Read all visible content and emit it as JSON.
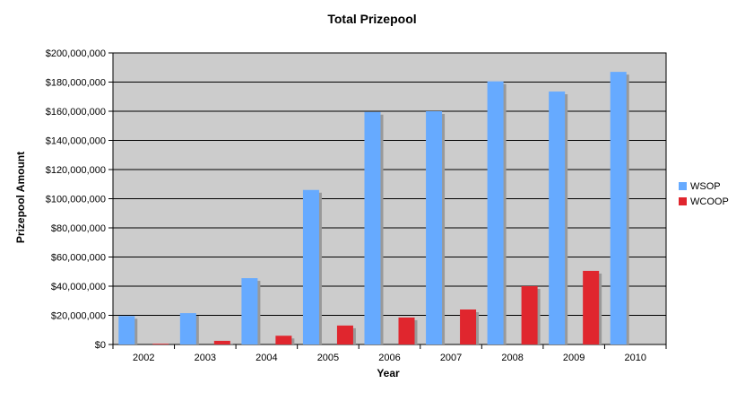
{
  "chart_data": {
    "type": "bar",
    "title": "Total Prizepool",
    "xlabel": "Year",
    "ylabel": "Prizepool Amount",
    "categories": [
      "2002",
      "2003",
      "2004",
      "2005",
      "2006",
      "2007",
      "2008",
      "2009",
      "2010"
    ],
    "series": [
      {
        "name": "WSOP",
        "color": "#66aaff",
        "values": [
          19500000,
          21500000,
          45500000,
          106000000,
          159500000,
          160000000,
          180500000,
          173500000,
          187000000
        ]
      },
      {
        "name": "WCOOP",
        "color": "#e0262e",
        "values": [
          500000,
          2500000,
          6000000,
          13000000,
          18500000,
          24000000,
          40000000,
          50500000,
          0
        ]
      }
    ],
    "ylim": [
      0,
      200000000
    ],
    "yticks": [
      0,
      20000000,
      40000000,
      60000000,
      80000000,
      100000000,
      120000000,
      140000000,
      160000000,
      180000000,
      200000000
    ],
    "ytick_labels": [
      "$0",
      "$20,000,000",
      "$40,000,000",
      "$60,000,000",
      "$80,000,000",
      "$100,000,000",
      "$120,000,000",
      "$140,000,000",
      "$160,000,000",
      "$180,000,000",
      "$200,000,000"
    ],
    "grid": true,
    "legend": "right",
    "plot_background": "#cccccc"
  }
}
